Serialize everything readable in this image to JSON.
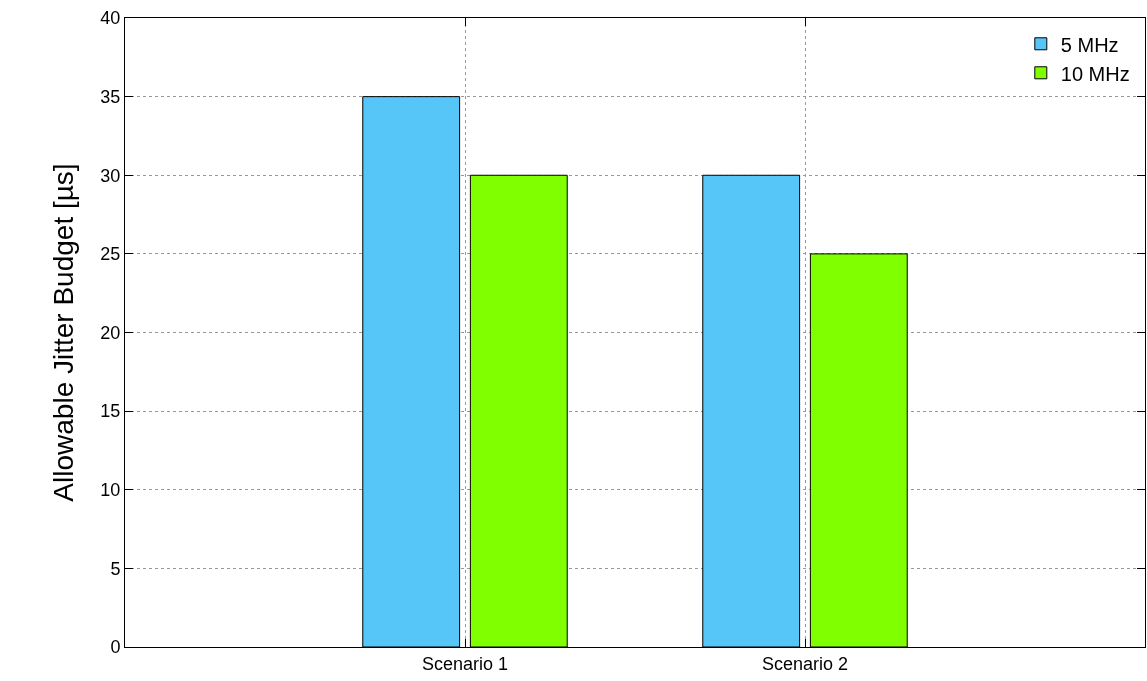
{
  "chart_data": {
    "type": "bar",
    "ylabel": "Allowable Jitter Budget [µs]",
    "categories": [
      "Scenario 1",
      "Scenario 2"
    ],
    "series": [
      {
        "name": "5 MHz",
        "color": "#56c5f7",
        "values": [
          35,
          30
        ]
      },
      {
        "name": "10 MHz",
        "color": "#7fff00",
        "values": [
          30,
          25
        ]
      }
    ],
    "ylim": [
      0,
      40
    ],
    "yticks": [
      0,
      5,
      10,
      15,
      20,
      25,
      30,
      35,
      40
    ],
    "grid": true,
    "legend": "top right"
  }
}
